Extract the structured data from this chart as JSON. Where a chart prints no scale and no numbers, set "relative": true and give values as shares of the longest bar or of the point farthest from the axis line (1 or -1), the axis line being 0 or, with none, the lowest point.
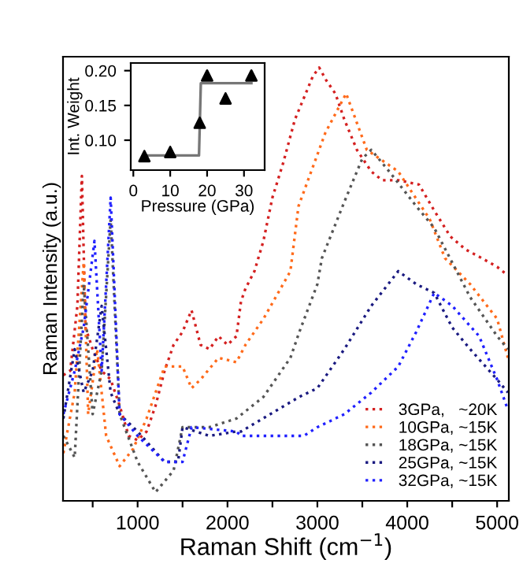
{
  "chart_data": [
    {
      "type": "line",
      "xlabel": "Raman Shift (cm$^{−1}$)",
      "ylabel": "Raman Intensity (a.u.)",
      "relative": true,
      "line_style": "dotted",
      "legend": "bottom right",
      "grid": false,
      "xlim": [
        170,
        5130
      ],
      "xticks": [
        {
          "value": 500,
          "label": null
        },
        1000,
        {
          "value": 1500,
          "label": null
        },
        2000,
        {
          "value": 2500,
          "label": null
        },
        3000,
        {
          "value": 3500,
          "label": null
        },
        4000,
        {
          "value": 4500,
          "label": null
        },
        5000
      ],
      "series": [
        {
          "name": "3GPa,   ~20K",
          "color": "#d42020",
          "x": [
            174,
            250,
            330,
            380,
            420,
            500,
            600,
            700,
            800,
            900,
            1000,
            1100,
            1200,
            1300,
            1400,
            1500,
            1600,
            1700,
            1800,
            1900,
            2000,
            2100,
            2150,
            2200,
            2300,
            2400,
            2500,
            2620,
            2750,
            2850,
            2950,
            3020,
            3100,
            3200,
            3300,
            3440,
            3600,
            3720,
            3900,
            4130,
            4300,
            4480,
            4650,
            4830,
            5000,
            5120
          ],
          "values": [
            0.29,
            0.3,
            0.45,
            0.75,
            0.4,
            0.35,
            0.3,
            0.28,
            0.22,
            0.15,
            0.14,
            0.16,
            0.22,
            0.3,
            0.36,
            0.39,
            0.44,
            0.36,
            0.35,
            0.38,
            0.36,
            0.38,
            0.46,
            0.49,
            0.53,
            0.6,
            0.7,
            0.78,
            0.88,
            0.93,
            0.98,
            1.0,
            0.97,
            0.94,
            0.88,
            0.81,
            0.76,
            0.74,
            0.74,
            0.73,
            0.67,
            0.61,
            0.58,
            0.56,
            0.54,
            0.52
          ]
        },
        {
          "name": "10GPa, ~15K",
          "color": "#ff6a1a",
          "x": [
            174,
            300,
            400,
            450,
            550,
            650,
            800,
            950,
            1100,
            1300,
            1500,
            1600,
            1700,
            1900,
            2100,
            2200,
            2400,
            2700,
            2790,
            3090,
            3320,
            3550,
            3900,
            4250,
            4420,
            4700,
            5000,
            5120
          ],
          "values": [
            0.11,
            0.25,
            0.55,
            0.2,
            0.35,
            0.15,
            0.08,
            0.12,
            0.19,
            0.31,
            0.31,
            0.26,
            0.28,
            0.33,
            0.32,
            0.36,
            0.42,
            0.53,
            0.68,
            0.85,
            0.94,
            0.81,
            0.76,
            0.65,
            0.56,
            0.5,
            0.42,
            0.33
          ]
        },
        {
          "name": "18GPa, ~15K",
          "color": "#555555",
          "x": [
            174,
            300,
            400,
            500,
            600,
            700,
            800,
            1000,
            1200,
            1400,
            1500,
            1800,
            2100,
            2400,
            2700,
            2800,
            3000,
            3050,
            3300,
            3500,
            3600,
            3800,
            4100,
            4300,
            4500,
            4700,
            5000,
            5120
          ],
          "values": [
            0.15,
            0.1,
            0.5,
            0.2,
            0.3,
            0.65,
            0.2,
            0.09,
            0.02,
            0.07,
            0.17,
            0.17,
            0.19,
            0.24,
            0.33,
            0.39,
            0.5,
            0.56,
            0.69,
            0.79,
            0.81,
            0.76,
            0.68,
            0.63,
            0.55,
            0.47,
            0.38,
            0.35
          ]
        },
        {
          "name": "25GPa, ~15K",
          "color": "#1a1a80",
          "x": [
            174,
            300,
            400,
            500,
            600,
            700,
            800,
            1000,
            1300,
            1450,
            1500,
            1800,
            2100,
            2150,
            2800,
            3000,
            3300,
            3600,
            3900,
            4100,
            4300,
            4500,
            4700,
            5000,
            5120
          ],
          "values": [
            0.19,
            0.35,
            0.25,
            0.3,
            0.45,
            0.25,
            0.2,
            0.16,
            0.09,
            0.09,
            0.17,
            0.15,
            0.16,
            0.16,
            0.24,
            0.26,
            0.35,
            0.45,
            0.53,
            0.5,
            0.48,
            0.4,
            0.35,
            0.28,
            0.25
          ]
        },
        {
          "name": "32GPa, ~15K",
          "color": "#2020ff",
          "x": [
            174,
            300,
            400,
            520,
            600,
            700,
            800,
            1000,
            1300,
            1500,
            1600,
            2100,
            2150,
            2850,
            3000,
            3300,
            3600,
            3900,
            4100,
            4300,
            4500,
            4800,
            5000,
            5120
          ],
          "values": [
            0.2,
            0.3,
            0.4,
            0.6,
            0.3,
            0.7,
            0.2,
            0.15,
            0.09,
            0.09,
            0.17,
            0.16,
            0.15,
            0.15,
            0.17,
            0.2,
            0.25,
            0.31,
            0.39,
            0.48,
            0.45,
            0.38,
            0.28,
            0.21
          ]
        }
      ]
    },
    {
      "type": "scatter",
      "xlabel": "Pressure (GPa)",
      "ylabel": "Int. Weight",
      "marker": "triangle",
      "grid": false,
      "legend": false,
      "xlim": [
        -0.7,
        35.6
      ],
      "ylim": [
        0.057,
        0.211
      ],
      "xticks": [
        0,
        10,
        20,
        30
      ],
      "yticks": [
        {
          "value": 0.1,
          "label": "0.10"
        },
        {
          "value": 0.15,
          "label": "0.15"
        },
        {
          "value": 0.2,
          "label": "0.20"
        }
      ],
      "series": [
        {
          "color": "#000000",
          "x": [
            3,
            10,
            18,
            20,
            25,
            32
          ],
          "values": [
            0.077,
            0.083,
            0.125,
            0.193,
            0.16,
            0.193
          ]
        },
        {
          "type": "line",
          "marker": "none",
          "color": "#777777",
          "x": [
            3,
            17.8,
            18.3,
            32
          ],
          "values": [
            0.078,
            0.078,
            0.182,
            0.182
          ]
        }
      ]
    }
  ]
}
